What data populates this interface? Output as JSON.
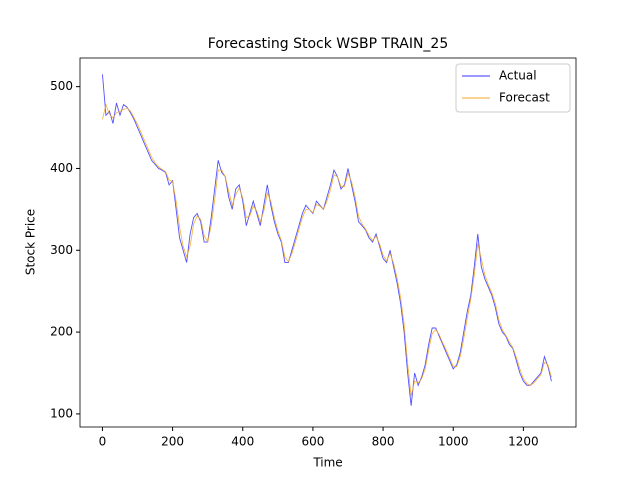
{
  "chart_data": {
    "type": "line",
    "title": "Forecasting Stock WSBP TRAIN_25",
    "x_label": "Time",
    "y_label": "Stock Price",
    "x": [
      0,
      10,
      20,
      30,
      40,
      50,
      60,
      70,
      80,
      90,
      100,
      110,
      120,
      130,
      140,
      150,
      160,
      170,
      180,
      190,
      200,
      210,
      220,
      230,
      240,
      250,
      260,
      270,
      280,
      290,
      300,
      310,
      320,
      330,
      340,
      350,
      360,
      370,
      380,
      390,
      400,
      410,
      420,
      430,
      440,
      450,
      460,
      470,
      480,
      490,
      500,
      510,
      520,
      530,
      540,
      550,
      560,
      570,
      580,
      590,
      600,
      610,
      620,
      630,
      640,
      650,
      660,
      670,
      680,
      690,
      700,
      710,
      720,
      730,
      740,
      750,
      760,
      770,
      780,
      790,
      800,
      810,
      820,
      830,
      840,
      850,
      860,
      870,
      880,
      890,
      900,
      910,
      920,
      930,
      940,
      950,
      960,
      970,
      980,
      990,
      1000,
      1010,
      1020,
      1030,
      1040,
      1050,
      1060,
      1070,
      1080,
      1090,
      1100,
      1110,
      1120,
      1130,
      1140,
      1150,
      1160,
      1170,
      1180,
      1190,
      1200,
      1210,
      1220,
      1230,
      1240,
      1250,
      1260,
      1270,
      1280
    ],
    "series": [
      {
        "name": "Actual",
        "color": "#3333ff",
        "values": [
          515,
          465,
          470,
          455,
          480,
          465,
          478,
          475,
          468,
          460,
          450,
          440,
          430,
          420,
          410,
          405,
          400,
          398,
          395,
          380,
          385,
          350,
          315,
          300,
          285,
          320,
          340,
          345,
          335,
          310,
          310,
          340,
          375,
          410,
          395,
          390,
          365,
          350,
          375,
          380,
          360,
          330,
          345,
          360,
          345,
          330,
          355,
          380,
          355,
          335,
          320,
          310,
          285,
          285,
          300,
          315,
          330,
          345,
          355,
          350,
          345,
          360,
          355,
          350,
          365,
          380,
          398,
          390,
          375,
          380,
          400,
          380,
          360,
          335,
          330,
          325,
          315,
          310,
          320,
          305,
          290,
          285,
          300,
          280,
          260,
          235,
          200,
          150,
          110,
          150,
          135,
          145,
          160,
          185,
          205,
          205,
          195,
          185,
          175,
          165,
          155,
          160,
          175,
          200,
          225,
          245,
          280,
          320,
          280,
          265,
          255,
          245,
          230,
          210,
          200,
          195,
          185,
          180,
          165,
          150,
          140,
          135,
          135,
          140,
          145,
          150,
          170,
          158,
          140
        ]
      },
      {
        "name": "Forecast",
        "color": "#f5a623",
        "values": [
          460,
          478,
          466,
          462,
          468,
          470,
          472,
          474,
          470,
          462,
          454,
          444,
          434,
          424,
          414,
          407,
          402,
          399,
          396,
          386,
          384,
          360,
          328,
          305,
          292,
          305,
          332,
          342,
          338,
          318,
          310,
          330,
          362,
          398,
          398,
          390,
          372,
          355,
          368,
          376,
          364,
          340,
          342,
          354,
          348,
          335,
          348,
          370,
          360,
          340,
          324,
          312,
          292,
          286,
          296,
          310,
          325,
          340,
          350,
          350,
          346,
          356,
          354,
          350,
          360,
          374,
          392,
          390,
          378,
          378,
          394,
          384,
          366,
          342,
          332,
          326,
          318,
          312,
          317,
          308,
          294,
          287,
          296,
          284,
          266,
          242,
          210,
          162,
          122,
          140,
          138,
          143,
          155,
          178,
          198,
          203,
          197,
          187,
          178,
          168,
          158,
          158,
          170,
          192,
          217,
          240,
          270,
          308,
          290,
          270,
          258,
          248,
          235,
          215,
          203,
          196,
          188,
          181,
          169,
          155,
          143,
          137,
          135,
          138,
          143,
          148,
          163,
          160,
          145
        ]
      }
    ],
    "xlim": [
      -64,
      1350
    ],
    "ylim": [
      84,
      535
    ],
    "xticks": [
      0,
      200,
      400,
      600,
      800,
      1000,
      1200
    ],
    "yticks": [
      100,
      200,
      300,
      400,
      500
    ],
    "legend": "upper right"
  }
}
